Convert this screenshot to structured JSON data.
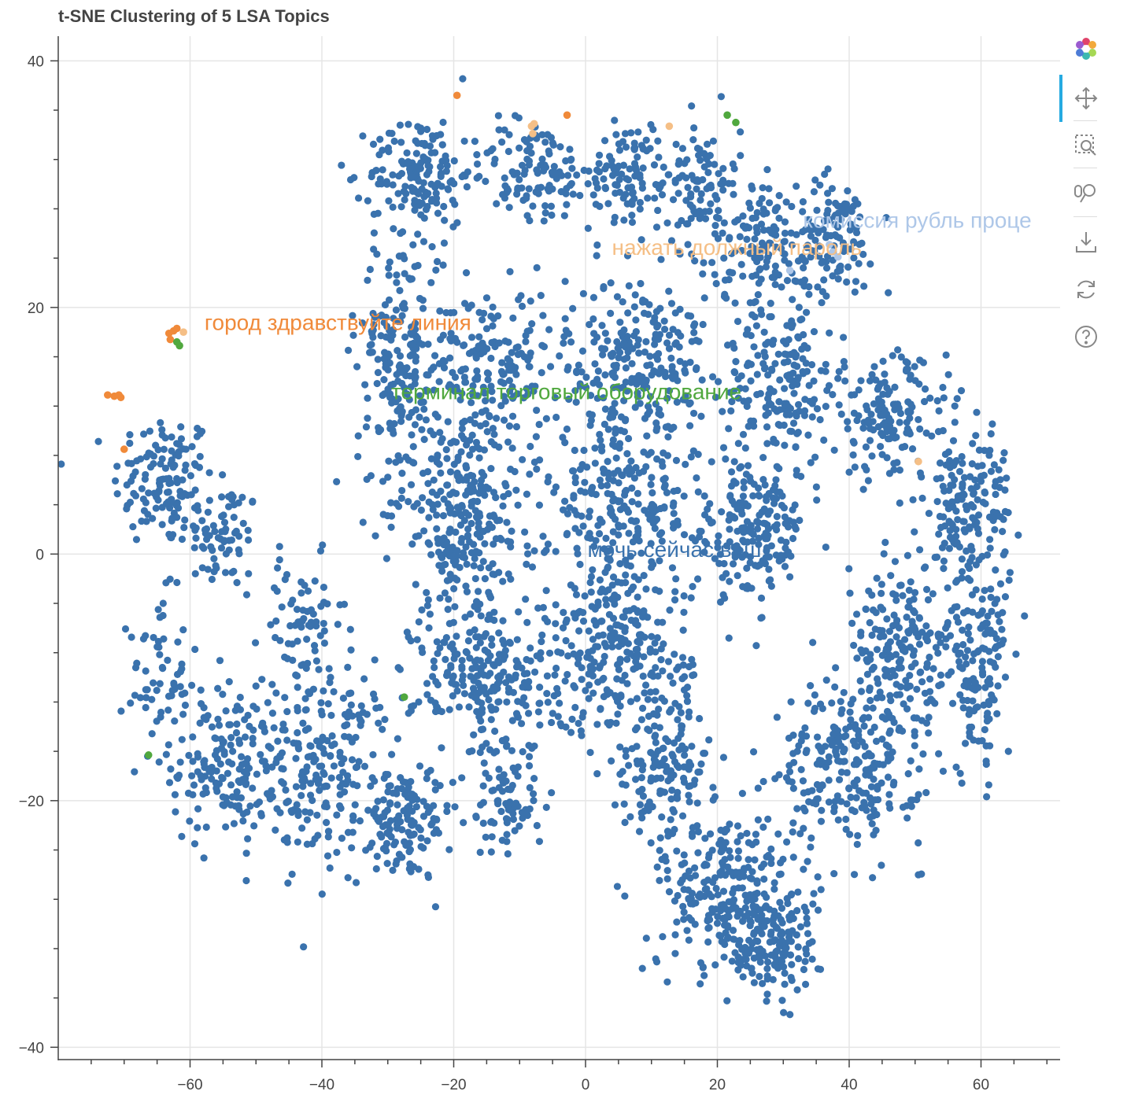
{
  "chart_data": {
    "type": "scatter",
    "title": "t-SNE Clustering of 5 LSA Topics",
    "xlabel": "",
    "ylabel": "",
    "xlim": [
      -80,
      72
    ],
    "ylim": [
      -41,
      42
    ],
    "grid": true,
    "x_ticks": [
      -60,
      -40,
      -20,
      0,
      20,
      40,
      60
    ],
    "y_ticks": [
      40,
      20,
      0,
      -20,
      -40
    ],
    "x_tick_labels": [
      "−60",
      "−40",
      "−20",
      "0",
      "20",
      "40",
      "60"
    ],
    "y_tick_labels": [
      "40",
      "20",
      "0",
      "−20",
      "−40"
    ],
    "colors": {
      "topic_0": "#3a72ad",
      "topic_1": "#f08a3a",
      "topic_2": "#f5bf86",
      "topic_3": "#50a83e",
      "topic_4": "#aec7e8"
    },
    "topic_labels": [
      {
        "text": "город здравствуйте линия",
        "x": -57.8,
        "y": 18.8,
        "color": "#f08a3a"
      },
      {
        "text": "нажать должный пароль",
        "x": 4.0,
        "y": 24.9,
        "color": "#f5bf86"
      },
      {
        "text": "комиссия рубль проце",
        "x": 33.0,
        "y": 27.1,
        "color": "#aec7e8"
      },
      {
        "text": "терминал торговый оборудование",
        "x": -29.5,
        "y": 13.2,
        "color": "#50a83e"
      },
      {
        "text": "мочь сейчас ваш",
        "x": 0.3,
        "y": 0.4,
        "color": "#3a72ad"
      }
    ],
    "highlight_points": [
      {
        "x": -72.5,
        "y": 12.9,
        "topic": 1
      },
      {
        "x": -71.5,
        "y": 12.8,
        "topic": 1
      },
      {
        "x": -70.8,
        "y": 12.9,
        "topic": 1
      },
      {
        "x": -70.5,
        "y": 12.7,
        "topic": 1
      },
      {
        "x": -70.0,
        "y": 8.5,
        "topic": 1
      },
      {
        "x": -63.0,
        "y": 17.4,
        "topic": 1
      },
      {
        "x": -62.5,
        "y": 18.1,
        "topic": 1
      },
      {
        "x": -62.0,
        "y": 18.3,
        "topic": 1
      },
      {
        "x": -63.2,
        "y": 17.9,
        "topic": 1
      },
      {
        "x": -62.0,
        "y": 17.2,
        "topic": 3
      },
      {
        "x": -61.6,
        "y": 16.9,
        "topic": 3
      },
      {
        "x": -61.0,
        "y": 18.0,
        "topic": 2
      },
      {
        "x": -19.5,
        "y": 37.2,
        "topic": 1
      },
      {
        "x": -2.8,
        "y": 35.6,
        "topic": 1
      },
      {
        "x": -8.2,
        "y": 34.7,
        "topic": 2
      },
      {
        "x": -7.8,
        "y": 34.9,
        "topic": 2
      },
      {
        "x": -8.0,
        "y": 34.1,
        "topic": 2
      },
      {
        "x": 12.7,
        "y": 34.7,
        "topic": 2
      },
      {
        "x": 21.5,
        "y": 35.6,
        "topic": 3
      },
      {
        "x": 22.8,
        "y": 35.0,
        "topic": 3
      },
      {
        "x": 50.5,
        "y": 7.5,
        "topic": 2
      },
      {
        "x": 31.0,
        "y": 23.0,
        "topic": 4
      },
      {
        "x": 37.5,
        "y": 24.5,
        "topic": 4
      },
      {
        "x": 38.3,
        "y": 24.1,
        "topic": 4
      },
      {
        "x": 37.0,
        "y": 25.1,
        "topic": 4
      },
      {
        "x": -27.5,
        "y": -11.6,
        "topic": 3
      },
      {
        "x": -66.3,
        "y": -16.3,
        "topic": 3
      }
    ],
    "clusters": [
      {
        "cx": -64,
        "cy": 6,
        "rx": 7,
        "ry": 5,
        "n": 130
      },
      {
        "cx": -55,
        "cy": 1.5,
        "rx": 5,
        "ry": 4,
        "n": 70
      },
      {
        "cx": -65,
        "cy": -10,
        "rx": 4,
        "ry": 6,
        "n": 60
      },
      {
        "cx": -55,
        "cy": -17,
        "rx": 7,
        "ry": 6,
        "n": 150
      },
      {
        "cx": -40,
        "cy": -17,
        "rx": 10,
        "ry": 7,
        "n": 230
      },
      {
        "cx": -28,
        "cy": -22,
        "rx": 7,
        "ry": 4,
        "n": 130
      },
      {
        "cx": -43,
        "cy": -6,
        "rx": 6,
        "ry": 5,
        "n": 70
      },
      {
        "cx": -25,
        "cy": 31,
        "rx": 7,
        "ry": 4,
        "n": 150
      },
      {
        "cx": -8,
        "cy": 31,
        "rx": 8,
        "ry": 4,
        "n": 110
      },
      {
        "cx": 6,
        "cy": 31,
        "rx": 5,
        "ry": 3.5,
        "n": 90
      },
      {
        "cx": 17,
        "cy": 30,
        "rx": 6,
        "ry": 5,
        "n": 110
      },
      {
        "cx": -28,
        "cy": 16,
        "rx": 6,
        "ry": 10,
        "n": 230
      },
      {
        "cx": -14,
        "cy": 15,
        "rx": 8,
        "ry": 6,
        "n": 170
      },
      {
        "cx": 8,
        "cy": 16,
        "rx": 10,
        "ry": 6,
        "n": 230
      },
      {
        "cx": 28,
        "cy": 25,
        "rx": 8,
        "ry": 5,
        "n": 150
      },
      {
        "cx": 38,
        "cy": 26,
        "rx": 5,
        "ry": 4,
        "n": 90
      },
      {
        "cx": 30,
        "cy": 14,
        "rx": 8,
        "ry": 6,
        "n": 180
      },
      {
        "cx": 46,
        "cy": 11,
        "rx": 8,
        "ry": 5,
        "n": 150
      },
      {
        "cx": -18,
        "cy": 3,
        "rx": 10,
        "ry": 7,
        "n": 270
      },
      {
        "cx": 5,
        "cy": 4,
        "rx": 10,
        "ry": 7,
        "n": 250
      },
      {
        "cx": 25,
        "cy": 2,
        "rx": 8,
        "ry": 5,
        "n": 200
      },
      {
        "cx": 58,
        "cy": 3,
        "rx": 6,
        "ry": 7,
        "n": 190
      },
      {
        "cx": -15,
        "cy": -10,
        "rx": 10,
        "ry": 6,
        "n": 250
      },
      {
        "cx": 5,
        "cy": -8,
        "rx": 10,
        "ry": 6,
        "n": 250
      },
      {
        "cx": 48,
        "cy": -8,
        "rx": 8,
        "ry": 6,
        "n": 190
      },
      {
        "cx": 60,
        "cy": -10,
        "rx": 4,
        "ry": 7,
        "n": 110
      },
      {
        "cx": 12,
        "cy": -17,
        "rx": 7,
        "ry": 5,
        "n": 150
      },
      {
        "cx": 40,
        "cy": -17,
        "rx": 10,
        "ry": 6,
        "n": 250
      },
      {
        "cx": 22,
        "cy": -27,
        "rx": 10,
        "ry": 6,
        "n": 250
      },
      {
        "cx": 28,
        "cy": -32,
        "rx": 7,
        "ry": 4,
        "n": 150
      },
      {
        "cx": -12,
        "cy": -20,
        "rx": 5,
        "ry": 4,
        "n": 80
      }
    ]
  },
  "toolbar": {
    "logo_icon": "bokeh-logo-icon",
    "tools": [
      "pan-icon",
      "box-zoom-icon",
      "wheel-zoom-icon",
      "save-icon",
      "reset-icon",
      "help-icon"
    ]
  }
}
